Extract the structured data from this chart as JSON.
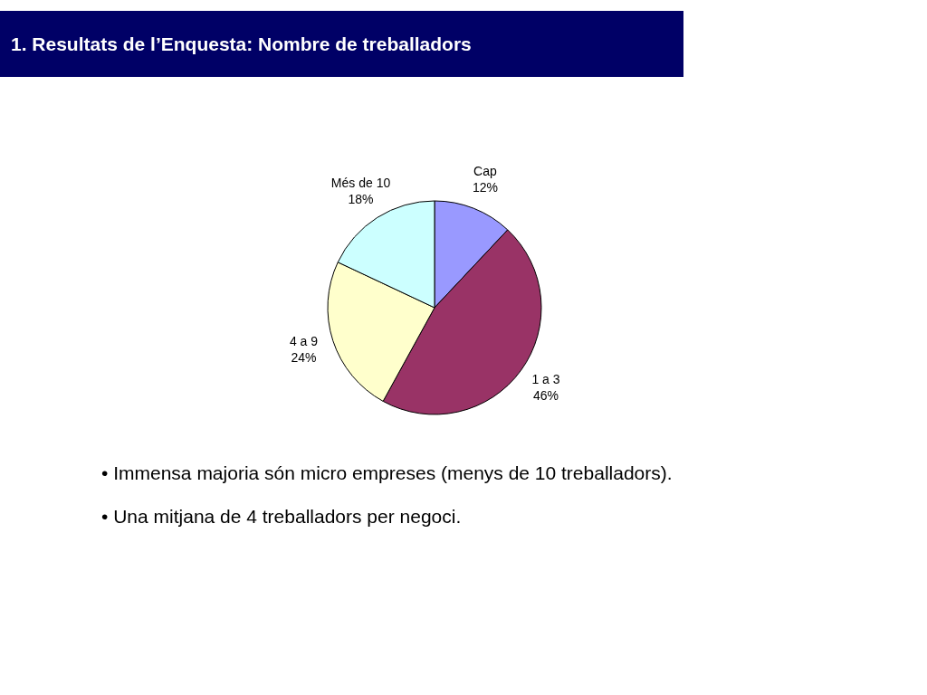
{
  "chart_data": {
    "type": "pie",
    "title": "1. Resultats de l’Enquesta: Nombre de treballadors",
    "categories": [
      "Cap",
      "1 a 3",
      "4 a 9",
      "Més de 10"
    ],
    "values": [
      12,
      46,
      24,
      18
    ],
    "value_labels": [
      "12%",
      "46%",
      "24%",
      "18%"
    ],
    "colors": [
      "#9999ff",
      "#993366",
      "#ffffcc",
      "#ccffff"
    ],
    "annotations": [
      "• Immensa majoria són micro empreses (menys de 10 treballadors).",
      "• Una mitjana de 4 treballadors per negoci."
    ]
  }
}
